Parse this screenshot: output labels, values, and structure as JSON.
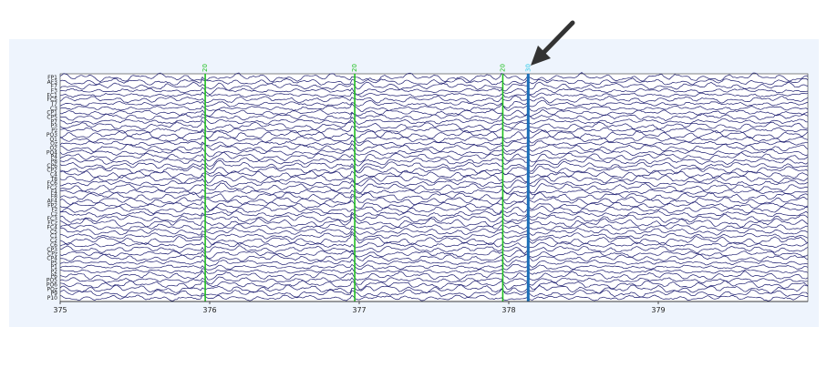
{
  "viewer": {
    "x_ticks": [
      "375",
      "376",
      "377",
      "378",
      "379"
    ],
    "x_range": [
      375,
      380
    ],
    "channel_labels": [
      "FP1",
      "AF3",
      "F7",
      "F3",
      "FC1",
      "FC5",
      "T7",
      "C3",
      "CP1",
      "CP5",
      "P7",
      "P3",
      "Pz",
      "PO3",
      "O1",
      "Oz",
      "O2",
      "PO4",
      "P4",
      "P8",
      "CP6",
      "CP2",
      "C4",
      "T8",
      "FC6",
      "FC2",
      "F4",
      "F8",
      "AF4",
      "FP2",
      "Fz",
      "Cz",
      "FC3",
      "FCz",
      "FC4",
      "C5",
      "C1",
      "C2",
      "C6",
      "CP3",
      "CPz",
      "CP4",
      "P5",
      "P1",
      "P2",
      "P6",
      "PO5",
      "PO6",
      "POz",
      "P9",
      "P10"
    ],
    "events": [
      {
        "time": 375.97,
        "label": "20",
        "color": "#1fbf1f",
        "selected": false
      },
      {
        "time": 376.97,
        "label": "20",
        "color": "#1fbf1f",
        "selected": false
      },
      {
        "time": 377.96,
        "label": "20",
        "color": "#1fbf1f",
        "selected": false
      },
      {
        "time": 378.13,
        "label": "30",
        "color": "#1a6fb8",
        "selected": true
      }
    ],
    "trace_color": "#1a1a6e",
    "background_color": "#eef4fd"
  },
  "annotation": {
    "arrow_icon": "arrow-pointing-down-left"
  }
}
